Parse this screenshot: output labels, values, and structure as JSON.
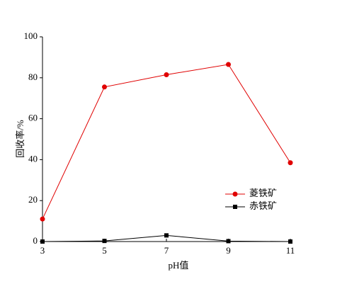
{
  "chart_data": {
    "type": "line",
    "x": [
      3,
      5,
      7,
      9,
      11
    ],
    "xlabel": "pH值",
    "ylabel": "回收率/%",
    "series": [
      {
        "name": "菱铁矿",
        "color": "#e00000",
        "marker": "circle",
        "values": [
          11,
          75.5,
          81.5,
          86.5,
          38.5
        ]
      },
      {
        "name": "赤铁矿",
        "color": "#000000",
        "marker": "square",
        "values": [
          0,
          0.3,
          3,
          0.2,
          0
        ]
      }
    ],
    "xlim": [
      3,
      11
    ],
    "xticks": [
      3,
      5,
      7,
      9,
      11
    ],
    "ylim": [
      0,
      100
    ],
    "yticks": [
      0,
      20,
      40,
      60,
      80,
      100
    ],
    "grid": false,
    "legend": "lower right"
  }
}
